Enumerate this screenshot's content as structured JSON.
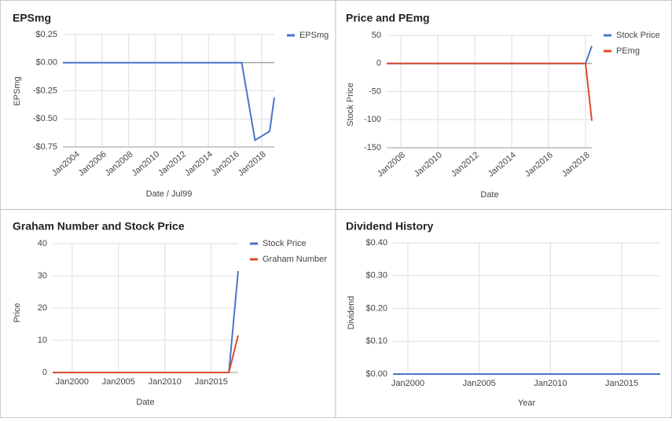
{
  "chart_data": [
    {
      "type": "line",
      "title": "EPSmg",
      "x_label": "Date / Jul99",
      "y_label": "EPSmg",
      "x": [
        2003.05,
        2016.5,
        2017.5,
        2018.6,
        2018.95
      ],
      "series": [
        {
          "name": "EPSmg",
          "color": "#4a74c9",
          "values": [
            0,
            0,
            -0.69,
            -0.61,
            -0.31
          ]
        }
      ],
      "xlim": [
        2003.05,
        2018.95
      ],
      "xticks": [
        {
          "value": 2004,
          "label": "Jan2004"
        },
        {
          "value": 2006,
          "label": "Jan2006"
        },
        {
          "value": 2008,
          "label": "Jan2008"
        },
        {
          "value": 2010,
          "label": "Jan2010"
        },
        {
          "value": 2012,
          "label": "Jan2012"
        },
        {
          "value": 2014,
          "label": "Jan2014"
        },
        {
          "value": 2016,
          "label": "Jan2016"
        },
        {
          "value": 2018,
          "label": "Jan2018"
        }
      ],
      "ylim": [
        -0.75,
        0.25
      ],
      "yticks": [
        {
          "value": 0.25,
          "label": "$0.25"
        },
        {
          "value": 0,
          "label": "$0.00"
        },
        {
          "value": -0.25,
          "label": "-$0.25"
        },
        {
          "value": -0.5,
          "label": "-$0.50"
        },
        {
          "value": -0.75,
          "label": "-$0.75"
        }
      ],
      "grid": true,
      "legend": "right"
    },
    {
      "type": "line",
      "title": "Price and PEmg",
      "x_label": "Date",
      "y_label": "Stock Price",
      "x": [
        2007.23,
        2018.0,
        2018.34
      ],
      "series": [
        {
          "name": "Stock Price",
          "color": "#4a74c9",
          "values": [
            0,
            0,
            31
          ]
        },
        {
          "name": "PEmg",
          "color": "#dc4b2c",
          "values": [
            0,
            0,
            -102
          ]
        }
      ],
      "xlim": [
        2007.23,
        2018.34
      ],
      "xticks": [
        {
          "value": 2008,
          "label": "Jan2008"
        },
        {
          "value": 2010,
          "label": "Jan2010"
        },
        {
          "value": 2012,
          "label": "Jan2012"
        },
        {
          "value": 2014,
          "label": "Jan2014"
        },
        {
          "value": 2016,
          "label": "Jan2016"
        },
        {
          "value": 2018,
          "label": "Jan2018"
        }
      ],
      "ylim": [
        -150,
        50
      ],
      "yticks": [
        50,
        0,
        -50,
        -100,
        -150
      ],
      "grid": true,
      "legend": "right"
    },
    {
      "type": "line",
      "title": "Graham Number and Stock Price",
      "x_label": "Date",
      "y_label": "Price",
      "x": [
        1997.9,
        2016.9,
        2017.9
      ],
      "series": [
        {
          "name": "Stock Price",
          "color": "#4a74c9",
          "values": [
            0,
            0,
            31.5
          ]
        },
        {
          "name": "Graham Number",
          "color": "#dc4b2c",
          "values": [
            0,
            0,
            11.5
          ]
        }
      ],
      "xlim": [
        1997.9,
        2017.9
      ],
      "xticks": [
        {
          "value": 2000,
          "label": "Jan2000"
        },
        {
          "value": 2005,
          "label": "Jan2005"
        },
        {
          "value": 2010,
          "label": "Jan2010"
        },
        {
          "value": 2015,
          "label": "Jan2015"
        }
      ],
      "ylim": [
        0,
        40
      ],
      "yticks": [
        0,
        10,
        20,
        30,
        40
      ],
      "grid": true,
      "legend": "right"
    },
    {
      "type": "line",
      "title": "Dividend History",
      "x_label": "Year",
      "y_label": "Dividend",
      "x": [
        1998.95,
        2017.7
      ],
      "series": [
        {
          "name": "Dividend",
          "color": "#4a74c9",
          "values": [
            0,
            0
          ]
        }
      ],
      "xlim": [
        1998.95,
        2017.7
      ],
      "xticks": [
        {
          "value": 2000,
          "label": "Jan2000"
        },
        {
          "value": 2005,
          "label": "Jan2005"
        },
        {
          "value": 2010,
          "label": "Jan2010"
        },
        {
          "value": 2015,
          "label": "Jan2015"
        }
      ],
      "ylim": [
        0,
        0.4
      ],
      "yticks": [
        {
          "value": 0,
          "label": "$0.00"
        },
        {
          "value": 0.1,
          "label": "$0.10"
        },
        {
          "value": 0.2,
          "label": "$0.20"
        },
        {
          "value": 0.3,
          "label": "$0.30"
        },
        {
          "value": 0.4,
          "label": "$0.40"
        }
      ],
      "grid": true,
      "legend": "none"
    }
  ]
}
